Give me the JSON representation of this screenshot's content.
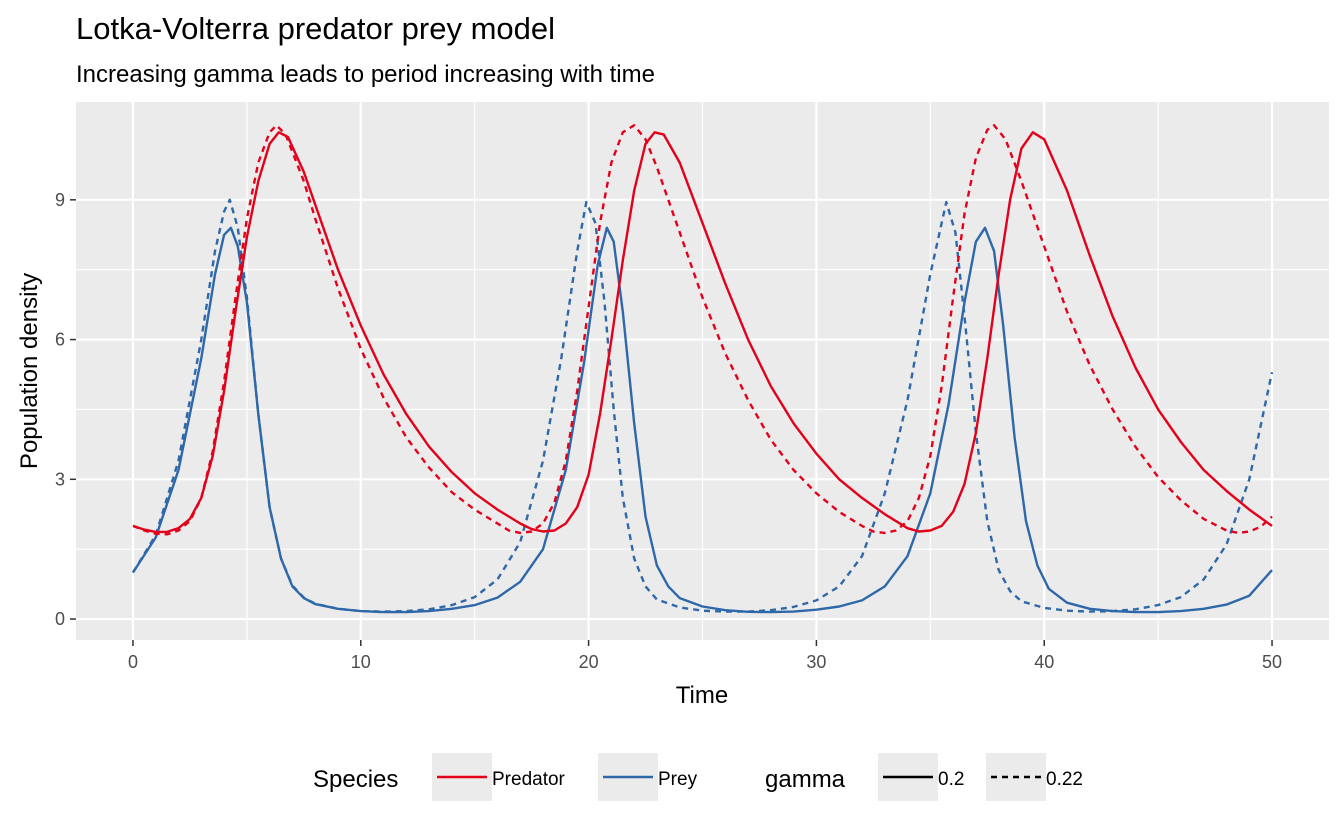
{
  "chart_data": {
    "type": "line",
    "title": "Lotka-Volterra predator prey model",
    "subtitle": "Increasing gamma leads to period increasing with time",
    "xlabel": "Time",
    "ylabel": "Population density",
    "xlim": [
      -2.5,
      52.5
    ],
    "ylim": [
      -0.45,
      11.1
    ],
    "x_ticks": [
      0,
      10,
      20,
      30,
      40,
      50
    ],
    "x_tick_labels": [
      "0",
      "10",
      "20",
      "30",
      "40",
      "50"
    ],
    "y_ticks": [
      0,
      3,
      6,
      9
    ],
    "y_tick_labels": [
      "0",
      "3",
      "6",
      "9"
    ],
    "grid": true,
    "legend_position": "bottom",
    "legend": {
      "species_title": "Species",
      "species": [
        {
          "label": "Predator",
          "color": "#e3001b"
        },
        {
          "label": "Prey",
          "color": "#2f68a8"
        }
      ],
      "gamma_title": "gamma",
      "gamma": [
        {
          "label": "0.2",
          "linetype": "solid"
        },
        {
          "label": "0.22",
          "linetype": "dashed"
        }
      ]
    },
    "series": [
      {
        "species": "Prey",
        "gamma": "0.2",
        "color": "#2f68a8",
        "linetype": "solid",
        "points": [
          [
            0,
            1.0
          ],
          [
            1,
            1.75
          ],
          [
            2,
            3.2
          ],
          [
            3,
            5.6
          ],
          [
            3.6,
            7.4
          ],
          [
            4,
            8.25
          ],
          [
            4.3,
            8.4
          ],
          [
            4.6,
            8.0
          ],
          [
            5,
            6.8
          ],
          [
            5.5,
            4.4
          ],
          [
            6,
            2.4
          ],
          [
            6.5,
            1.3
          ],
          [
            7,
            0.7
          ],
          [
            7.5,
            0.45
          ],
          [
            8,
            0.32
          ],
          [
            9,
            0.22
          ],
          [
            10,
            0.17
          ],
          [
            11,
            0.15
          ],
          [
            12,
            0.15
          ],
          [
            13,
            0.17
          ],
          [
            14,
            0.22
          ],
          [
            15,
            0.3
          ],
          [
            16,
            0.46
          ],
          [
            17,
            0.8
          ],
          [
            18,
            1.5
          ],
          [
            19,
            3.2
          ],
          [
            19.8,
            5.5
          ],
          [
            20.4,
            7.6
          ],
          [
            20.8,
            8.4
          ],
          [
            21.1,
            8.1
          ],
          [
            21.5,
            6.6
          ],
          [
            22,
            4.2
          ],
          [
            22.5,
            2.2
          ],
          [
            23,
            1.15
          ],
          [
            23.5,
            0.7
          ],
          [
            24,
            0.45
          ],
          [
            25,
            0.27
          ],
          [
            26,
            0.19
          ],
          [
            27,
            0.155
          ],
          [
            28,
            0.15
          ],
          [
            29,
            0.16
          ],
          [
            30,
            0.2
          ],
          [
            31,
            0.27
          ],
          [
            32,
            0.4
          ],
          [
            33,
            0.7
          ],
          [
            34,
            1.35
          ],
          [
            35,
            2.7
          ],
          [
            35.8,
            4.6
          ],
          [
            36.5,
            6.8
          ],
          [
            37,
            8.1
          ],
          [
            37.4,
            8.4
          ],
          [
            37.8,
            7.9
          ],
          [
            38.2,
            6.3
          ],
          [
            38.7,
            3.9
          ],
          [
            39.2,
            2.1
          ],
          [
            39.7,
            1.15
          ],
          [
            40.2,
            0.65
          ],
          [
            41,
            0.35
          ],
          [
            42,
            0.22
          ],
          [
            43,
            0.17
          ],
          [
            44,
            0.15
          ],
          [
            45,
            0.15
          ],
          [
            46,
            0.17
          ],
          [
            47,
            0.22
          ],
          [
            48,
            0.31
          ],
          [
            49,
            0.5
          ],
          [
            50,
            1.05
          ]
        ]
      },
      {
        "species": "Prey",
        "gamma": "0.22",
        "color": "#2f68a8",
        "linetype": "dashed",
        "points": [
          [
            0,
            1.0
          ],
          [
            1,
            1.8
          ],
          [
            2,
            3.4
          ],
          [
            3,
            6.0
          ],
          [
            3.6,
            7.9
          ],
          [
            4,
            8.75
          ],
          [
            4.25,
            9.0
          ],
          [
            4.6,
            8.4
          ],
          [
            5,
            6.9
          ],
          [
            5.5,
            4.4
          ],
          [
            6,
            2.4
          ],
          [
            6.5,
            1.3
          ],
          [
            7,
            0.72
          ],
          [
            7.5,
            0.46
          ],
          [
            8,
            0.33
          ],
          [
            9,
            0.22
          ],
          [
            10,
            0.17
          ],
          [
            11,
            0.16
          ],
          [
            12,
            0.17
          ],
          [
            13,
            0.21
          ],
          [
            14,
            0.3
          ],
          [
            15,
            0.47
          ],
          [
            16,
            0.85
          ],
          [
            17,
            1.65
          ],
          [
            18,
            3.4
          ],
          [
            18.8,
            5.6
          ],
          [
            19.5,
            7.9
          ],
          [
            19.9,
            8.95
          ],
          [
            20.3,
            8.5
          ],
          [
            20.7,
            6.8
          ],
          [
            21.1,
            4.5
          ],
          [
            21.5,
            2.6
          ],
          [
            22,
            1.3
          ],
          [
            22.5,
            0.7
          ],
          [
            23,
            0.42
          ],
          [
            24,
            0.25
          ],
          [
            25,
            0.18
          ],
          [
            26,
            0.16
          ],
          [
            27,
            0.16
          ],
          [
            28,
            0.19
          ],
          [
            29,
            0.26
          ],
          [
            30,
            0.4
          ],
          [
            31,
            0.7
          ],
          [
            32,
            1.35
          ],
          [
            33,
            2.7
          ],
          [
            34,
            4.7
          ],
          [
            35,
            7.4
          ],
          [
            35.7,
            8.95
          ],
          [
            36.1,
            8.3
          ],
          [
            36.5,
            6.5
          ],
          [
            37,
            4.0
          ],
          [
            37.5,
            2.1
          ],
          [
            38,
            1.05
          ],
          [
            38.5,
            0.6
          ],
          [
            39,
            0.38
          ],
          [
            40,
            0.24
          ],
          [
            41,
            0.18
          ],
          [
            42,
            0.16
          ],
          [
            43,
            0.17
          ],
          [
            44,
            0.21
          ],
          [
            45,
            0.3
          ],
          [
            46,
            0.47
          ],
          [
            47,
            0.85
          ],
          [
            48,
            1.6
          ],
          [
            49,
            3.0
          ],
          [
            50,
            5.3
          ]
        ]
      },
      {
        "species": "Predator",
        "gamma": "0.2",
        "color": "#e3001b",
        "linetype": "solid",
        "points": [
          [
            0,
            2.0
          ],
          [
            0.5,
            1.92
          ],
          [
            1,
            1.87
          ],
          [
            1.5,
            1.87
          ],
          [
            2,
            1.95
          ],
          [
            2.5,
            2.15
          ],
          [
            3,
            2.6
          ],
          [
            3.5,
            3.5
          ],
          [
            4,
            4.9
          ],
          [
            4.5,
            6.6
          ],
          [
            5,
            8.2
          ],
          [
            5.5,
            9.4
          ],
          [
            6,
            10.2
          ],
          [
            6.4,
            10.45
          ],
          [
            6.8,
            10.35
          ],
          [
            7.5,
            9.6
          ],
          [
            8,
            8.9
          ],
          [
            9,
            7.5
          ],
          [
            10,
            6.3
          ],
          [
            11,
            5.25
          ],
          [
            12,
            4.4
          ],
          [
            13,
            3.7
          ],
          [
            14,
            3.15
          ],
          [
            15,
            2.7
          ],
          [
            16,
            2.35
          ],
          [
            17,
            2.05
          ],
          [
            17.5,
            1.93
          ],
          [
            18,
            1.88
          ],
          [
            18.5,
            1.9
          ],
          [
            19,
            2.05
          ],
          [
            19.5,
            2.4
          ],
          [
            20,
            3.1
          ],
          [
            20.5,
            4.4
          ],
          [
            21,
            6.0
          ],
          [
            21.5,
            7.7
          ],
          [
            22,
            9.2
          ],
          [
            22.5,
            10.2
          ],
          [
            22.9,
            10.45
          ],
          [
            23.3,
            10.4
          ],
          [
            24,
            9.8
          ],
          [
            25,
            8.5
          ],
          [
            26,
            7.2
          ],
          [
            27,
            6.0
          ],
          [
            28,
            5.0
          ],
          [
            29,
            4.2
          ],
          [
            30,
            3.55
          ],
          [
            31,
            3.0
          ],
          [
            32,
            2.6
          ],
          [
            33,
            2.25
          ],
          [
            34,
            1.95
          ],
          [
            34.5,
            1.88
          ],
          [
            35,
            1.9
          ],
          [
            35.5,
            2.0
          ],
          [
            36,
            2.3
          ],
          [
            36.5,
            2.9
          ],
          [
            37,
            4.0
          ],
          [
            37.5,
            5.6
          ],
          [
            38,
            7.4
          ],
          [
            38.5,
            9.0
          ],
          [
            39,
            10.1
          ],
          [
            39.5,
            10.45
          ],
          [
            40,
            10.3
          ],
          [
            41,
            9.2
          ],
          [
            42,
            7.8
          ],
          [
            43,
            6.5
          ],
          [
            44,
            5.4
          ],
          [
            45,
            4.5
          ],
          [
            46,
            3.8
          ],
          [
            47,
            3.2
          ],
          [
            48,
            2.75
          ],
          [
            49,
            2.35
          ],
          [
            50,
            2.0
          ]
        ]
      },
      {
        "species": "Predator",
        "gamma": "0.22",
        "color": "#e3001b",
        "linetype": "dashed",
        "points": [
          [
            0,
            2.0
          ],
          [
            0.5,
            1.9
          ],
          [
            1,
            1.83
          ],
          [
            1.5,
            1.82
          ],
          [
            2,
            1.9
          ],
          [
            2.5,
            2.1
          ],
          [
            3,
            2.6
          ],
          [
            3.5,
            3.6
          ],
          [
            4,
            5.1
          ],
          [
            4.5,
            6.9
          ],
          [
            5,
            8.6
          ],
          [
            5.5,
            9.8
          ],
          [
            6,
            10.45
          ],
          [
            6.3,
            10.6
          ],
          [
            6.7,
            10.4
          ],
          [
            7.5,
            9.4
          ],
          [
            8,
            8.6
          ],
          [
            9,
            7.1
          ],
          [
            10,
            5.8
          ],
          [
            11,
            4.75
          ],
          [
            12,
            3.9
          ],
          [
            13,
            3.25
          ],
          [
            14,
            2.72
          ],
          [
            15,
            2.35
          ],
          [
            16,
            2.05
          ],
          [
            16.5,
            1.9
          ],
          [
            17,
            1.85
          ],
          [
            17.5,
            1.88
          ],
          [
            18,
            2.05
          ],
          [
            18.5,
            2.5
          ],
          [
            19,
            3.4
          ],
          [
            19.5,
            4.9
          ],
          [
            20,
            6.7
          ],
          [
            20.5,
            8.5
          ],
          [
            21,
            9.8
          ],
          [
            21.5,
            10.45
          ],
          [
            22,
            10.6
          ],
          [
            22.5,
            10.3
          ],
          [
            23,
            9.7
          ],
          [
            24,
            8.3
          ],
          [
            25,
            6.9
          ],
          [
            26,
            5.7
          ],
          [
            27,
            4.7
          ],
          [
            28,
            3.85
          ],
          [
            29,
            3.2
          ],
          [
            30,
            2.7
          ],
          [
            31,
            2.3
          ],
          [
            32,
            2.0
          ],
          [
            32.5,
            1.88
          ],
          [
            33,
            1.85
          ],
          [
            33.5,
            1.9
          ],
          [
            34,
            2.1
          ],
          [
            34.5,
            2.6
          ],
          [
            35,
            3.5
          ],
          [
            35.5,
            5.0
          ],
          [
            36,
            6.9
          ],
          [
            36.5,
            8.7
          ],
          [
            37,
            9.9
          ],
          [
            37.5,
            10.5
          ],
          [
            37.8,
            10.6
          ],
          [
            38.3,
            10.3
          ],
          [
            39,
            9.4
          ],
          [
            40,
            8.0
          ],
          [
            41,
            6.6
          ],
          [
            42,
            5.45
          ],
          [
            43,
            4.5
          ],
          [
            44,
            3.7
          ],
          [
            45,
            3.05
          ],
          [
            46,
            2.55
          ],
          [
            47,
            2.15
          ],
          [
            48,
            1.9
          ],
          [
            48.5,
            1.85
          ],
          [
            49,
            1.88
          ],
          [
            49.5,
            1.98
          ],
          [
            50,
            2.2
          ]
        ]
      }
    ]
  }
}
